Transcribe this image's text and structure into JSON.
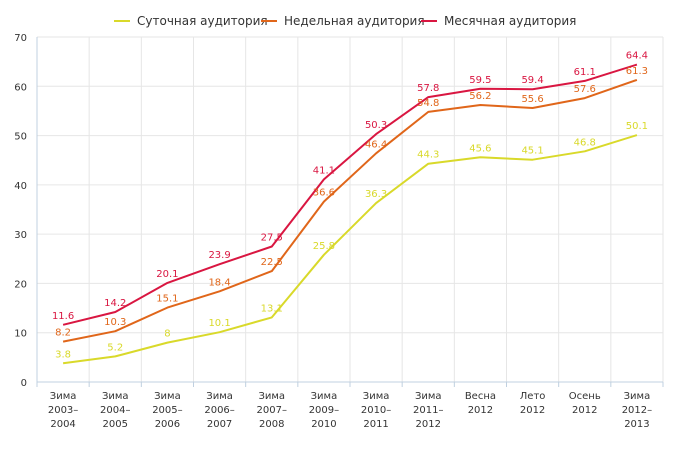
{
  "chart_data": {
    "type": "line",
    "title": "",
    "xlabel": "",
    "ylabel": "",
    "ylim": [
      0,
      70
    ],
    "yticks": [
      0,
      10,
      20,
      30,
      40,
      50,
      60,
      70
    ],
    "grid": true,
    "legend_position": "top",
    "categories": [
      [
        "Зима",
        "2003–",
        "2004"
      ],
      [
        "Зима",
        "2004–",
        "2005"
      ],
      [
        "Зима",
        "2005–",
        "2006"
      ],
      [
        "Зима",
        "2006–",
        "2007"
      ],
      [
        "Зима",
        "2007–",
        "2008"
      ],
      [
        "Зима",
        "2009–",
        "2010"
      ],
      [
        "Зима",
        "2010–",
        "2011"
      ],
      [
        "Зима",
        "2011–",
        "2012"
      ],
      [
        "Весна",
        "2012"
      ],
      [
        "Лето",
        "2012"
      ],
      [
        "Осень",
        "2012"
      ],
      [
        "Зима",
        "2012–",
        "2013"
      ]
    ],
    "series": [
      {
        "name": "Суточная аудитория",
        "color": "#d9d92a",
        "values": [
          3.8,
          5.2,
          8,
          10.1,
          13.1,
          25.8,
          36.3,
          44.3,
          45.6,
          45.1,
          46.8,
          50.1
        ],
        "labels": [
          "3.8",
          "5.2",
          "8",
          "10.1",
          "13.1",
          "25.8",
          "36.3",
          "44.3",
          "45.6",
          "45.1",
          "46.8",
          "50.1"
        ]
      },
      {
        "name": "Недельная аудитория",
        "color": "#e0661a",
        "values": [
          8.2,
          10.3,
          15.1,
          18.4,
          22.5,
          36.6,
          46.4,
          54.8,
          56.2,
          55.6,
          57.6,
          61.3
        ],
        "labels": [
          "8.2",
          "10.3",
          "15.1",
          "18.4",
          "22.5",
          "36.6",
          "46.4",
          "54.8",
          "56.2",
          "55.6",
          "57.6",
          "61.3"
        ]
      },
      {
        "name": "Месячная аудитория",
        "color": "#d91641",
        "values": [
          11.6,
          14.2,
          20.1,
          23.9,
          27.5,
          41.1,
          50.3,
          57.8,
          59.5,
          59.4,
          61.1,
          64.4
        ],
        "labels": [
          "11.6",
          "14.2",
          "20.1",
          "23.9",
          "27.5",
          "41.1",
          "50.3",
          "57.8",
          "59.5",
          "59.4",
          "61.1",
          "64.4"
        ]
      }
    ]
  }
}
